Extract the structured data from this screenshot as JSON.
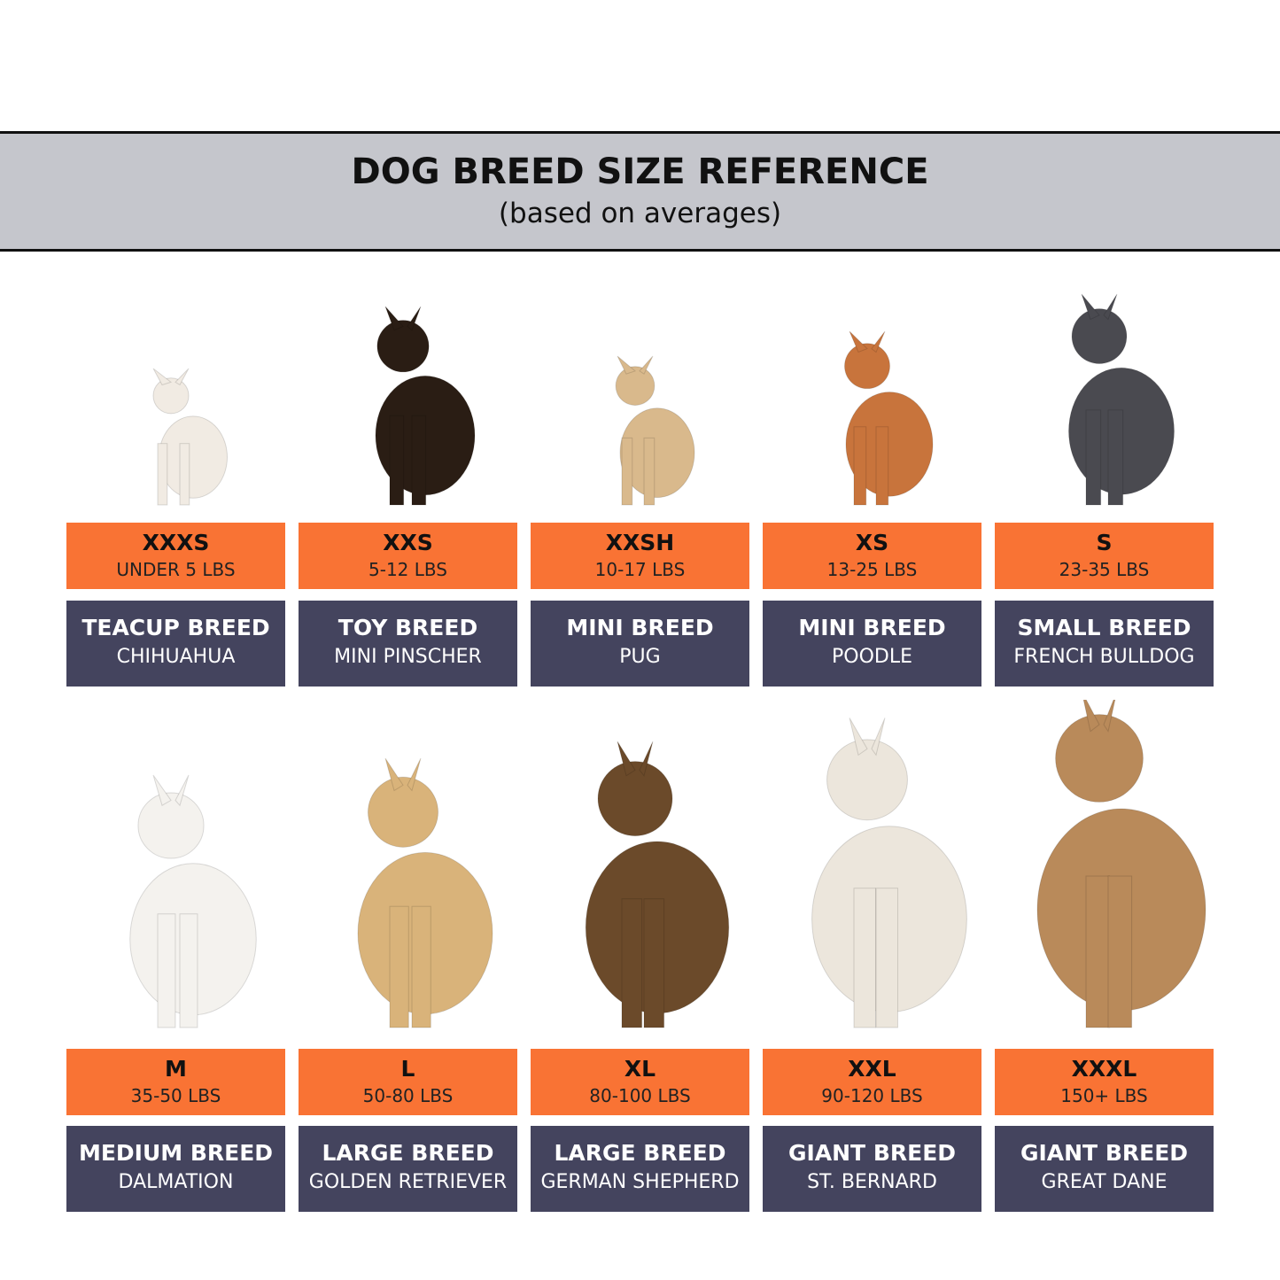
{
  "header": {
    "title": "DOG BREED SIZE REFERENCE",
    "subtitle": "(based on averages)"
  },
  "rows": [
    [
      {
        "size": "XXXS",
        "weight": "UNDER 5 LBS",
        "category": "TEACUP BREED",
        "breed": "CHIHUAHUA"
      },
      {
        "size": "XXS",
        "weight": "5-12 LBS",
        "category": "TOY BREED",
        "breed": "MINI PINSCHER"
      },
      {
        "size": "XXSH",
        "weight": "10-17 LBS",
        "category": "MINI BREED",
        "breed": "PUG"
      },
      {
        "size": "XS",
        "weight": "13-25 LBS",
        "category": "MINI BREED",
        "breed": "POODLE"
      },
      {
        "size": "S",
        "weight": "23-35 LBS",
        "category": "SMALL BREED",
        "breed": "FRENCH BULLDOG"
      }
    ],
    [
      {
        "size": "M",
        "weight": "35-50 LBS",
        "category": "MEDIUM BREED",
        "breed": "DALMATION"
      },
      {
        "size": "L",
        "weight": "50-80 LBS",
        "category": "LARGE BREED",
        "breed": "GOLDEN RETRIEVER"
      },
      {
        "size": "XL",
        "weight": "80-100 LBS",
        "category": "LARGE BREED",
        "breed": "GERMAN SHEPHERD"
      },
      {
        "size": "XXL",
        "weight": "90-120 LBS",
        "category": "GIANT BREED",
        "breed": "ST. BERNARD"
      },
      {
        "size": "XXXL",
        "weight": "150+ LBS",
        "category": "GIANT BREED",
        "breed": "GREAT DANE"
      }
    ]
  ]
}
